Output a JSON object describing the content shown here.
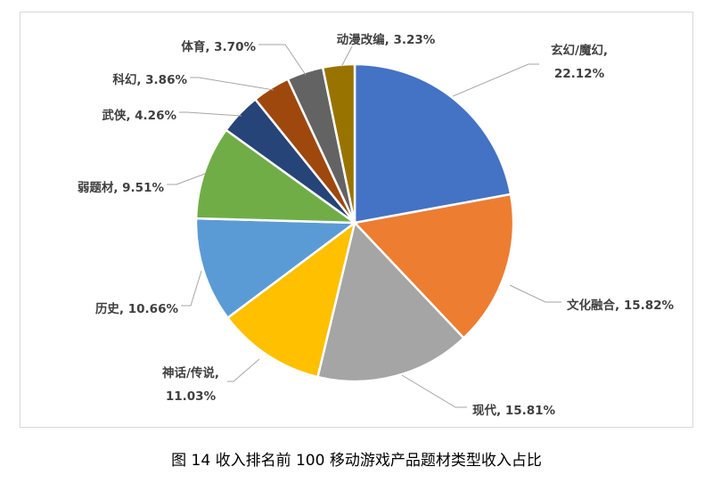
{
  "caption": "图 14 收入排名前 100 移动游戏产品题材类型收入占比",
  "chart_data": {
    "type": "pie",
    "title": "",
    "start_angle_deg": 0,
    "direction": "clockwise",
    "slices": [
      {
        "name": "玄幻/魔幻",
        "value": 22.12,
        "label_lines": [
          "玄幻/魔幻,",
          "22.12%"
        ],
        "color": "#4472C4"
      },
      {
        "name": "文化融合",
        "value": 15.82,
        "label_lines": [
          "文化融合, 15.82%"
        ],
        "color": "#ED7D31"
      },
      {
        "name": "现代",
        "value": 15.81,
        "label_lines": [
          "现代, 15.81%"
        ],
        "color": "#A5A5A5"
      },
      {
        "name": "神话/传说",
        "value": 11.03,
        "label_lines": [
          "神话/传说,",
          "11.03%"
        ],
        "color": "#FFC000"
      },
      {
        "name": "历史",
        "value": 10.66,
        "label_lines": [
          "历史, 10.66%"
        ],
        "color": "#5B9BD5"
      },
      {
        "name": "弱题材",
        "value": 9.51,
        "label_lines": [
          "弱题材, 9.51%"
        ],
        "color": "#70AD47"
      },
      {
        "name": "武侠",
        "value": 4.26,
        "label_lines": [
          "武侠, 4.26%"
        ],
        "color": "#264478"
      },
      {
        "name": "科幻",
        "value": 3.86,
        "label_lines": [
          "科幻, 3.86%"
        ],
        "color": "#9E480E"
      },
      {
        "name": "体育",
        "value": 3.7,
        "label_lines": [
          "体育, 3.70%"
        ],
        "color": "#636363"
      },
      {
        "name": "动漫改编",
        "value": 3.23,
        "label_lines": [
          "动漫改编, 3.23%"
        ],
        "color": "#997300"
      }
    ]
  }
}
